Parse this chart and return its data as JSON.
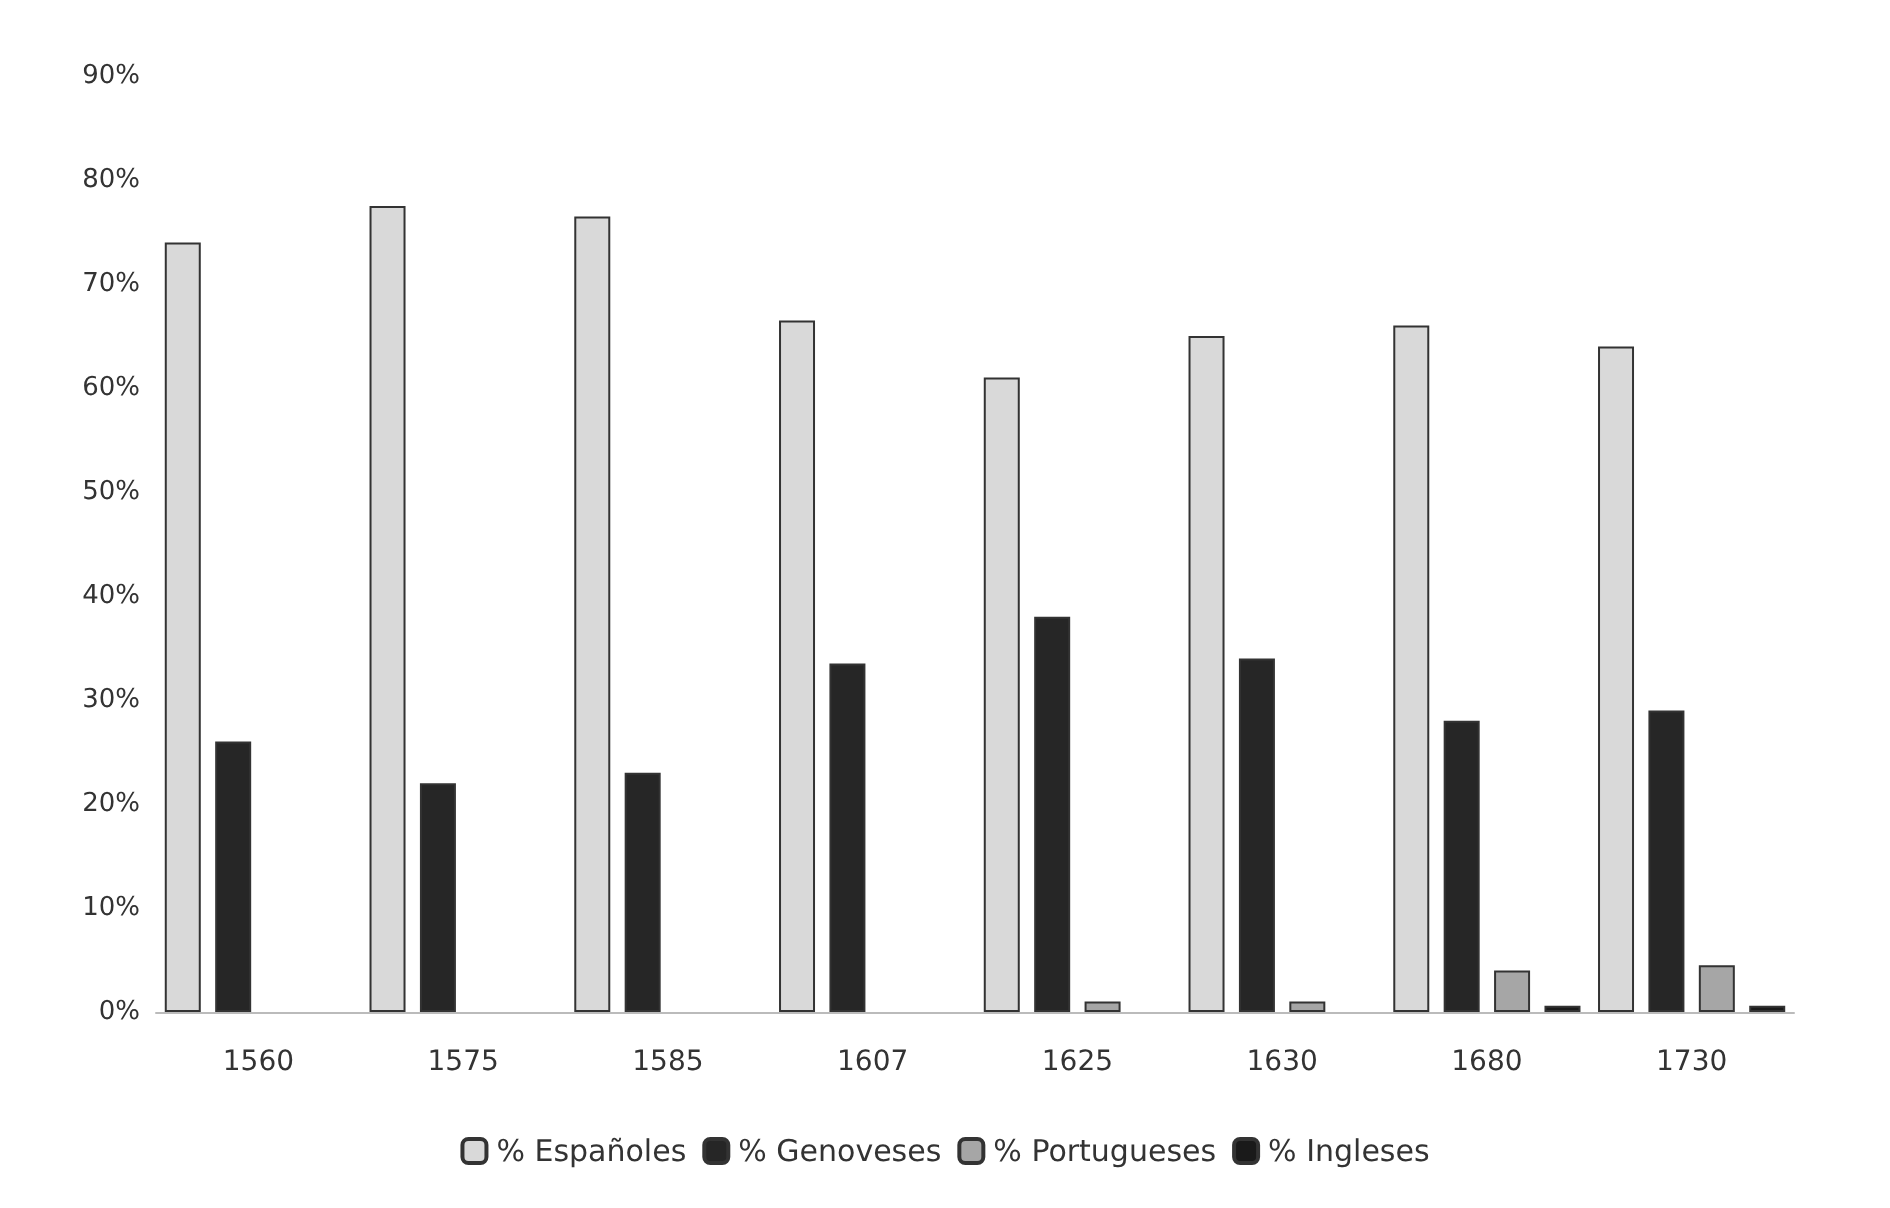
{
  "chart_data": {
    "type": "bar",
    "categories": [
      "1560",
      "1575",
      "1585",
      "1607",
      "1625",
      "1630",
      "1680",
      "1730"
    ],
    "series": [
      {
        "name": "% Españoles",
        "color": "#d9d9d9",
        "values": [
          74,
          77.5,
          76.5,
          66.5,
          61,
          65,
          66,
          64
        ]
      },
      {
        "name": "% Genoveses",
        "color": "#262626",
        "values": [
          26,
          22,
          23,
          33.5,
          38,
          34,
          28,
          29
        ]
      },
      {
        "name": "% Portugueses",
        "color": "#a6a6a6",
        "values": [
          null,
          null,
          null,
          null,
          1,
          1,
          4,
          4.5
        ]
      },
      {
        "name": "% Ingleses",
        "color": "#1a1a1a",
        "values": [
          null,
          null,
          null,
          null,
          null,
          null,
          0.6,
          0.6
        ]
      }
    ],
    "ylim": [
      0,
      90
    ],
    "yticks": [
      {
        "value": 0,
        "label": "0%"
      },
      {
        "value": 10,
        "label": "10%"
      },
      {
        "value": 20,
        "label": "20%"
      },
      {
        "value": 30,
        "label": "30%"
      },
      {
        "value": 40,
        "label": "40%"
      },
      {
        "value": 50,
        "label": "50%"
      },
      {
        "value": 60,
        "label": "60%"
      },
      {
        "value": 70,
        "label": "70%"
      },
      {
        "value": 80,
        "label": "80%"
      },
      {
        "value": 90,
        "label": "90%"
      }
    ],
    "grid": false,
    "legend": "bottom"
  }
}
